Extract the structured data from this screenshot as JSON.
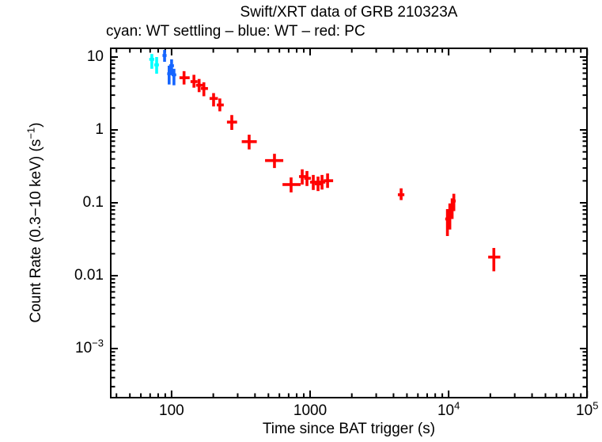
{
  "colors": {
    "background": "#ffffff",
    "axis": "#000000",
    "wt_settling": "#00ffff",
    "wt": "#1565ff",
    "pc": "#ff0000"
  },
  "chart_data": {
    "type": "scatter",
    "title": "Swift/XRT data of GRB 210323A",
    "subtitle": "cyan: WT settling – blue: WT – red: PC",
    "xlabel": "Time since BAT trigger (s)",
    "ylabel_parts": [
      {
        "t": "Count Rate (0.3−10 keV) (s"
      },
      {
        "sup": "−1"
      },
      {
        "t": ")"
      }
    ],
    "xscale": "log",
    "yscale": "log",
    "xlim": [
      35.9,
      101000
    ],
    "ylim": [
      0.000207,
      13.5
    ],
    "grid": false,
    "legend": "none",
    "x_ticks": [
      {
        "v": 100,
        "parts": [
          {
            "t": "100"
          }
        ]
      },
      {
        "v": 1000,
        "parts": [
          {
            "t": "1000"
          }
        ]
      },
      {
        "v": 10000,
        "parts": [
          {
            "t": "10"
          },
          {
            "sup": "4"
          }
        ]
      },
      {
        "v": 100000,
        "parts": [
          {
            "t": "10"
          },
          {
            "sup": "5"
          }
        ]
      }
    ],
    "y_ticks": [
      {
        "v": 10,
        "parts": [
          {
            "t": "10"
          }
        ]
      },
      {
        "v": 1,
        "parts": [
          {
            "t": "1"
          }
        ]
      },
      {
        "v": 0.1,
        "parts": [
          {
            "t": "0.1"
          }
        ]
      },
      {
        "v": 0.01,
        "parts": [
          {
            "t": "0.01"
          }
        ]
      },
      {
        "v": 0.001,
        "parts": [
          {
            "t": "10"
          },
          {
            "sup": "−3"
          }
        ]
      }
    ],
    "point_columns": [
      "t",
      "t_lo",
      "t_hi",
      "rate",
      "rate_lo",
      "rate_hi"
    ],
    "series": [
      {
        "name": "WT settling",
        "color_key": "wt_settling",
        "points": [
          [
            72,
            69,
            75,
            9.3,
            6.9,
            11.0
          ],
          [
            78,
            75,
            81,
            7.8,
            5.9,
            10.0
          ]
        ]
      },
      {
        "name": "WT",
        "color_key": "wt",
        "points": [
          [
            89,
            86,
            92,
            10.5,
            8.6,
            12.5
          ],
          [
            96,
            93,
            100,
            5.9,
            4.2,
            7.6
          ],
          [
            100,
            96,
            104,
            7.6,
            5.7,
            9.3
          ],
          [
            104,
            100,
            108,
            5.7,
            4.1,
            6.9
          ]
        ]
      },
      {
        "name": "PC",
        "color_key": "pc",
        "points": [
          [
            123,
            114,
            135,
            5.2,
            4.2,
            6.4
          ],
          [
            145,
            137,
            154,
            4.6,
            3.8,
            5.7
          ],
          [
            158,
            150,
            169,
            4.1,
            3.3,
            5.0
          ],
          [
            171,
            163,
            183,
            3.7,
            2.9,
            4.5
          ],
          [
            201,
            188,
            216,
            2.7,
            2.1,
            3.2
          ],
          [
            223,
            212,
            238,
            2.2,
            1.8,
            2.7
          ],
          [
            272,
            251,
            297,
            1.28,
            1.0,
            1.6
          ],
          [
            363,
            321,
            412,
            0.69,
            0.54,
            0.86
          ],
          [
            553,
            473,
            640,
            0.38,
            0.3,
            0.47
          ],
          [
            729,
            632,
            854,
            0.178,
            0.139,
            0.223
          ],
          [
            877,
            832,
            936,
            0.229,
            0.178,
            0.288
          ],
          [
            949,
            907,
            1013,
            0.217,
            0.17,
            0.273
          ],
          [
            1054,
            1000,
            1123,
            0.192,
            0.15,
            0.241
          ],
          [
            1141,
            1081,
            1201,
            0.182,
            0.145,
            0.229
          ],
          [
            1219,
            1150,
            1288,
            0.192,
            0.152,
            0.241
          ],
          [
            1337,
            1253,
            1466,
            0.201,
            0.16,
            0.253
          ],
          [
            4540,
            4300,
            4790,
            0.129,
            0.109,
            0.158
          ],
          [
            9800,
            9450,
            10150,
            0.06,
            0.035,
            0.082
          ],
          [
            10200,
            9850,
            10550,
            0.073,
            0.043,
            0.098
          ],
          [
            10600,
            10250,
            10950,
            0.089,
            0.06,
            0.115
          ],
          [
            10900,
            10550,
            11250,
            0.106,
            0.077,
            0.133
          ],
          [
            21200,
            19300,
            23600,
            0.018,
            0.0115,
            0.024
          ]
        ]
      }
    ]
  }
}
